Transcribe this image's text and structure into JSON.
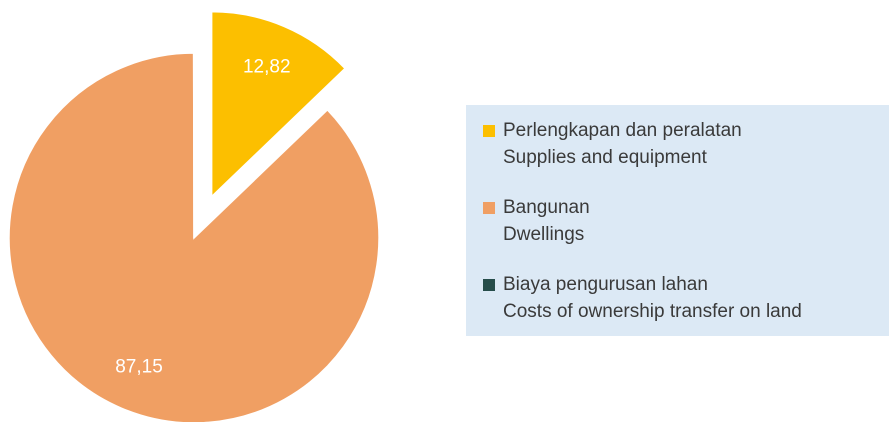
{
  "chart_data": {
    "type": "pie",
    "categories": [
      [
        "Perlengkapan dan peralatan",
        "Supplies and equipment"
      ],
      [
        "Bangunan",
        "Dwellings"
      ],
      [
        "Biaya pengurusan lahan",
        "Costs of ownership transfer on land"
      ]
    ],
    "values": [
      12.82,
      87.15,
      0.03
    ],
    "value_labels": [
      "12,82",
      "87,15",
      null
    ],
    "colors": [
      "#fcbf00",
      "#f09f63",
      "#264d4a"
    ],
    "exploded": [
      true,
      false,
      false
    ],
    "legend": "right"
  }
}
